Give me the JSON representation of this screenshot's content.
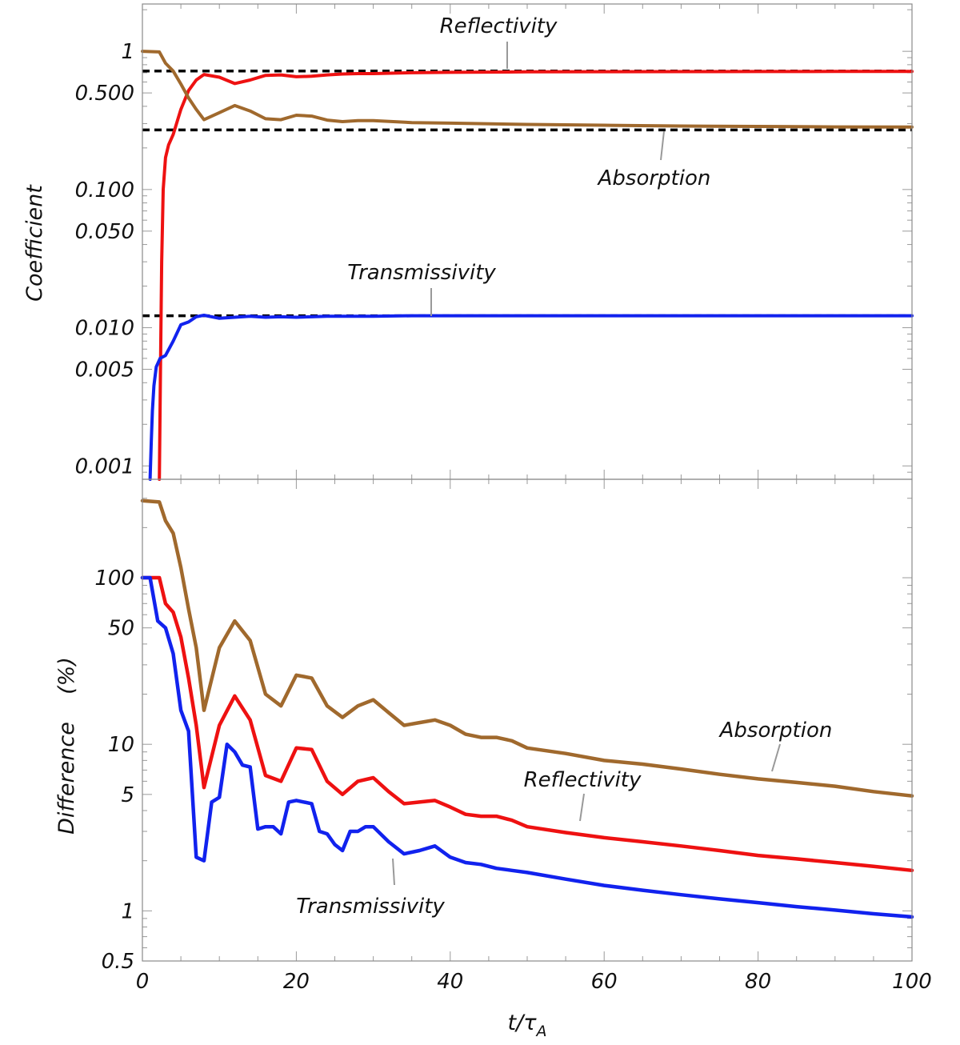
{
  "chart_data": [
    {
      "type": "line",
      "panel": "top",
      "title": "",
      "xlabel": "",
      "ylabel": "Coefficient",
      "yscale": "log",
      "xlim": [
        0,
        100
      ],
      "ylim": [
        0.0008,
        2.2
      ],
      "y_ticks": [
        {
          "value": 1,
          "label": "1"
        },
        {
          "value": 0.5,
          "label": "0.500"
        },
        {
          "value": 0.1,
          "label": "0.100"
        },
        {
          "value": 0.05,
          "label": "0.050"
        },
        {
          "value": 0.01,
          "label": "0.010"
        },
        {
          "value": 0.005,
          "label": "0.005"
        },
        {
          "value": 0.001,
          "label": "0.001"
        }
      ],
      "reference_lines": [
        {
          "name": "Reflectivity asymptote",
          "value": 0.72,
          "style": "dashed",
          "color": "#000000"
        },
        {
          "name": "Absorption asymptote",
          "value": 0.27,
          "style": "dashed",
          "color": "#000000"
        },
        {
          "name": "Transmissivity asymptote",
          "value": 0.0122,
          "style": "dashed",
          "color": "#000000"
        }
      ],
      "series": [
        {
          "name": "Reflectivity",
          "color": "#ee1111",
          "x": [
            2.2,
            2.35,
            2.5,
            2.7,
            3.0,
            3.4,
            4.0,
            5.0,
            6.0,
            7.0,
            8.0,
            10.0,
            12.0,
            14.0,
            16.0,
            18.0,
            20.0,
            22.0,
            24.0,
            26.0,
            28.0,
            30.0,
            35.0,
            40.0,
            50.0,
            60.0,
            70.0,
            80.0,
            90.0,
            100.0
          ],
          "y": [
            0.0008,
            0.005,
            0.03,
            0.1,
            0.17,
            0.21,
            0.25,
            0.38,
            0.52,
            0.62,
            0.68,
            0.65,
            0.585,
            0.62,
            0.67,
            0.675,
            0.655,
            0.66,
            0.675,
            0.685,
            0.69,
            0.69,
            0.7,
            0.705,
            0.71,
            0.712,
            0.713,
            0.714,
            0.715,
            0.716
          ]
        },
        {
          "name": "Absorption",
          "color": "#a0692d",
          "x": [
            0.0,
            2.2,
            3.0,
            4.0,
            5.0,
            6.0,
            7.0,
            8.0,
            10.0,
            12.0,
            14.0,
            16.0,
            18.0,
            20.0,
            22.0,
            24.0,
            26.0,
            28.0,
            30.0,
            35.0,
            40.0,
            50.0,
            60.0,
            70.0,
            80.0,
            90.0,
            100.0
          ],
          "y": [
            1.0,
            0.99,
            0.82,
            0.72,
            0.58,
            0.46,
            0.38,
            0.32,
            0.36,
            0.405,
            0.37,
            0.325,
            0.32,
            0.345,
            0.34,
            0.318,
            0.31,
            0.315,
            0.315,
            0.305,
            0.302,
            0.296,
            0.292,
            0.288,
            0.286,
            0.284,
            0.283
          ]
        },
        {
          "name": "Transmissivity",
          "color": "#1122ee",
          "x": [
            1.0,
            1.15,
            1.3,
            1.5,
            1.8,
            2.3,
            3.0,
            4.0,
            5.0,
            6.0,
            7.0,
            8.0,
            10.0,
            12.0,
            14.0,
            16.0,
            18.0,
            20.0,
            22.0,
            24.0,
            26.0,
            28.0,
            30.0,
            35.0,
            40.0,
            50.0,
            60.0,
            70.0,
            80.0,
            90.0,
            100.0
          ],
          "y": [
            0.0008,
            0.0015,
            0.0025,
            0.0038,
            0.0052,
            0.006,
            0.0063,
            0.008,
            0.0105,
            0.011,
            0.012,
            0.0123,
            0.0117,
            0.0119,
            0.0121,
            0.0119,
            0.012,
            0.0119,
            0.012,
            0.0121,
            0.0121,
            0.0121,
            0.0121,
            0.0122,
            0.0122,
            0.0122,
            0.0122,
            0.0122,
            0.0122,
            0.0122,
            0.0122
          ]
        }
      ],
      "annotations": [
        {
          "text": "Reflectivity",
          "target": "Reflectivity asymptote"
        },
        {
          "text": "Absorption",
          "target": "Absorption"
        },
        {
          "text": "Transmissivity",
          "target": "Transmissivity asymptote"
        }
      ]
    },
    {
      "type": "line",
      "panel": "bottom",
      "title": "",
      "xlabel": "t/τ_A",
      "ylabel": "Difference (%)",
      "yscale": "log",
      "xlim": [
        0,
        100
      ],
      "ylim": [
        0.5,
        390
      ],
      "x_ticks": [
        {
          "value": 0,
          "label": "0"
        },
        {
          "value": 20,
          "label": "20"
        },
        {
          "value": 40,
          "label": "40"
        },
        {
          "value": 60,
          "label": "60"
        },
        {
          "value": 80,
          "label": "80"
        },
        {
          "value": 100,
          "label": "100"
        }
      ],
      "y_ticks": [
        {
          "value": 100,
          "label": "100"
        },
        {
          "value": 50,
          "label": "50"
        },
        {
          "value": 10,
          "label": "10"
        },
        {
          "value": 5,
          "label": "5"
        },
        {
          "value": 1,
          "label": "1"
        },
        {
          "value": 0.5,
          "label": "0.5"
        }
      ],
      "series": [
        {
          "name": "Absorption",
          "color": "#a0692d",
          "x": [
            0.0,
            2.2,
            3.0,
            4.0,
            5.0,
            6.0,
            7.0,
            8.0,
            10.0,
            12.0,
            14.0,
            16.0,
            18.0,
            20.0,
            22.0,
            24.0,
            26.0,
            28.0,
            30.0,
            32.0,
            34.0,
            36.0,
            38.0,
            40.0,
            42.0,
            44.0,
            46.0,
            48.0,
            50.0,
            55.0,
            60.0,
            65.0,
            70.0,
            75.0,
            80.0,
            85.0,
            90.0,
            95.0,
            100.0
          ],
          "y": [
            290.0,
            285.0,
            220.0,
            185.0,
            115.0,
            65.0,
            38.0,
            16.0,
            38.0,
            55.0,
            42.0,
            20.0,
            17.0,
            26.0,
            25.0,
            17.0,
            14.5,
            17.0,
            18.5,
            15.5,
            13.0,
            13.5,
            14.0,
            13.0,
            11.5,
            11.0,
            11.0,
            10.5,
            9.5,
            8.8,
            8.0,
            7.6,
            7.1,
            6.6,
            6.2,
            5.9,
            5.6,
            5.2,
            4.9
          ]
        },
        {
          "name": "Reflectivity",
          "color": "#ee1111",
          "x": [
            0.0,
            2.2,
            3.0,
            4.0,
            5.0,
            6.0,
            7.0,
            8.0,
            10.0,
            12.0,
            14.0,
            16.0,
            18.0,
            20.0,
            22.0,
            24.0,
            26.0,
            28.0,
            30.0,
            32.0,
            34.0,
            36.0,
            38.0,
            40.0,
            42.0,
            44.0,
            46.0,
            48.0,
            50.0,
            55.0,
            60.0,
            65.0,
            70.0,
            75.0,
            80.0,
            85.0,
            90.0,
            95.0,
            100.0
          ],
          "y": [
            100.0,
            100.0,
            70.0,
            62.0,
            44.0,
            25.0,
            13.0,
            5.5,
            13.0,
            19.5,
            14.0,
            6.5,
            6.0,
            9.5,
            9.3,
            6.0,
            5.0,
            6.0,
            6.3,
            5.2,
            4.4,
            4.5,
            4.6,
            4.2,
            3.8,
            3.7,
            3.7,
            3.5,
            3.2,
            2.95,
            2.75,
            2.6,
            2.45,
            2.3,
            2.15,
            2.05,
            1.95,
            1.85,
            1.75
          ]
        },
        {
          "name": "Transmissivity",
          "color": "#1122ee",
          "x": [
            0.0,
            1.0,
            2.0,
            3.0,
            4.0,
            5.0,
            6.0,
            7.0,
            8.0,
            9.0,
            10.0,
            11.0,
            12.0,
            13.0,
            14.0,
            15.0,
            16.0,
            17.0,
            18.0,
            19.0,
            20.0,
            21.0,
            22.0,
            23.0,
            24.0,
            25.0,
            26.0,
            27.0,
            28.0,
            29.0,
            30.0,
            32.0,
            34.0,
            36.0,
            38.0,
            40.0,
            42.0,
            44.0,
            46.0,
            48.0,
            50.0,
            55.0,
            60.0,
            65.0,
            70.0,
            75.0,
            80.0,
            85.0,
            90.0,
            95.0,
            100.0
          ],
          "y": [
            100.0,
            100.0,
            55.0,
            50.0,
            35.0,
            16.0,
            12.0,
            2.1,
            2.0,
            4.5,
            4.8,
            10.0,
            9.0,
            7.5,
            7.3,
            3.1,
            3.2,
            3.2,
            2.9,
            4.5,
            4.6,
            4.5,
            4.4,
            3.0,
            2.9,
            2.5,
            2.3,
            3.0,
            3.0,
            3.2,
            3.2,
            2.6,
            2.2,
            2.3,
            2.45,
            2.1,
            1.95,
            1.9,
            1.8,
            1.75,
            1.7,
            1.55,
            1.42,
            1.33,
            1.25,
            1.18,
            1.12,
            1.06,
            1.01,
            0.96,
            0.92
          ]
        }
      ],
      "annotations": [
        {
          "text": "Absorption",
          "target": "Absorption"
        },
        {
          "text": "Reflectivity",
          "target": "Reflectivity"
        },
        {
          "text": "Transmissivity",
          "target": "Transmissivity"
        }
      ]
    }
  ]
}
